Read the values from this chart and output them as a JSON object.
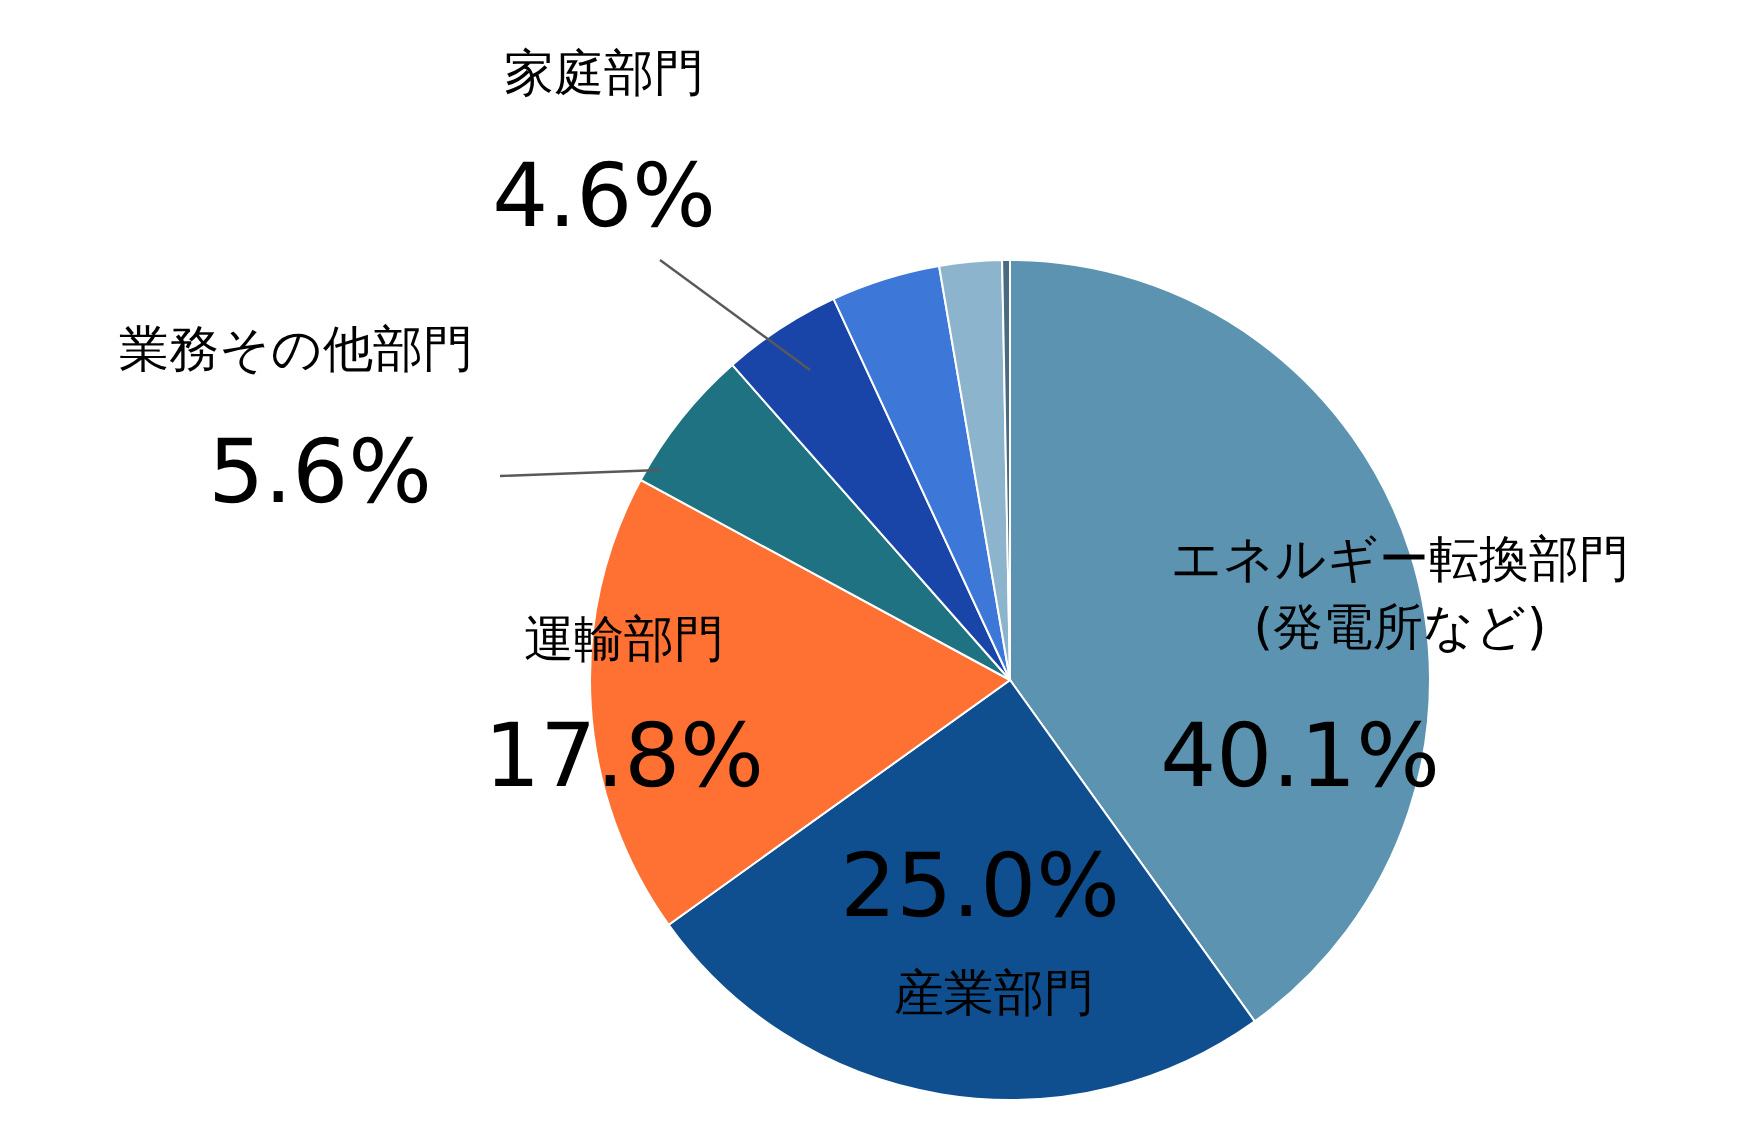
{
  "chart_data": {
    "type": "pie",
    "categories": [
      "エネルギー転換部門\n(発電所など)",
      "産業部門",
      "運輸部門",
      "業務その他部門",
      "家庭部門",
      null,
      null,
      null
    ],
    "values": [
      40.1,
      25.0,
      17.8,
      5.6,
      4.6,
      4.2,
      2.4,
      0.3
    ],
    "colors": [
      "#5b93b0",
      "#0f4f8f",
      "#ff7033",
      "#1f7282",
      "#1a45a8",
      "#3d78d8",
      "#8cb4cc",
      "#4a6a80"
    ],
    "value_labels": [
      "40.1%",
      "25.0%",
      "17.8%",
      "5.6%",
      "4.6%",
      null,
      null,
      null
    ]
  }
}
